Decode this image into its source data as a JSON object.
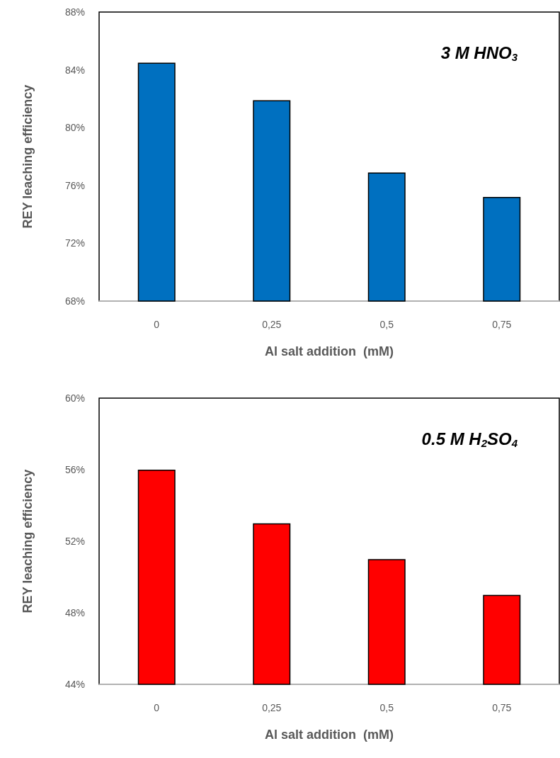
{
  "chart_data": [
    {
      "type": "bar",
      "xlabel": "Al salt addition  (mM)",
      "ylabel": "REY leaching efficiency",
      "categories": [
        "0",
        "0,25",
        "0,5",
        "0,75"
      ],
      "values": [
        84.5,
        81.9,
        76.9,
        75.2
      ],
      "color": "#0070c0",
      "ylim": [
        68,
        88
      ],
      "yticks": [
        {
          "value": 68,
          "label": "68%"
        },
        {
          "value": 72,
          "label": "72%"
        },
        {
          "value": 76,
          "label": "76%"
        },
        {
          "value": 80,
          "label": "80%"
        },
        {
          "value": 84,
          "label": "84%"
        },
        {
          "value": 88,
          "label": "88%"
        }
      ],
      "grid": false,
      "annotations": [
        "3 M HNO$_{3}$"
      ]
    },
    {
      "type": "bar",
      "xlabel": "Al salt addition  (mM)",
      "ylabel": "REY leaching efficiency",
      "categories": [
        "0",
        "0,25",
        "0,5",
        "0,75"
      ],
      "values": [
        56.0,
        53.0,
        51.0,
        49.0
      ],
      "color": "#ff0000",
      "ylim": [
        44,
        60
      ],
      "yticks": [
        {
          "value": 44,
          "label": "44%"
        },
        {
          "value": 48,
          "label": "48%"
        },
        {
          "value": 52,
          "label": "52%"
        },
        {
          "value": 56,
          "label": "56%"
        },
        {
          "value": 60,
          "label": "60%"
        }
      ],
      "grid": false,
      "annotations": [
        "0.5 M H$_{2}$SO$_{4}$"
      ]
    }
  ]
}
